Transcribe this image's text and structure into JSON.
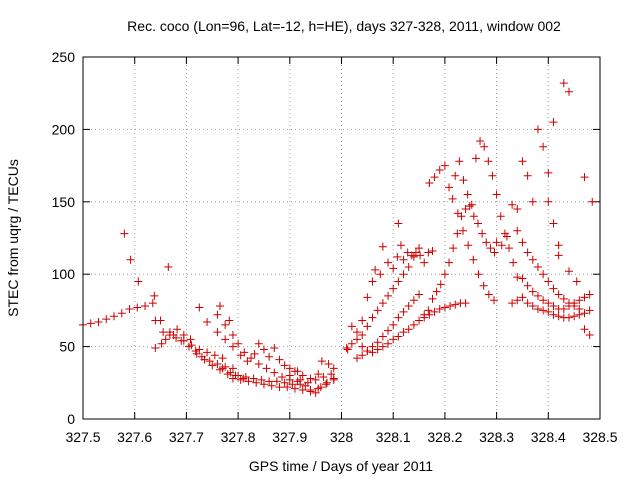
{
  "chart_data": {
    "type": "scatter",
    "title": "Rec. coco (Lon=96, Lat=-12, h=HE), days 327-328, 2011, window 002",
    "xlabel": "GPS time / Days of year 2011",
    "ylabel": "STEC from uqrg / TECUs",
    "xlim": [
      327.5,
      328.5
    ],
    "ylim": [
      0,
      250
    ],
    "xticks": [
      "327.5",
      "327.6",
      "327.7",
      "327.8",
      "327.9",
      "328",
      "328.1",
      "328.2",
      "328.3",
      "328.4",
      "328.5"
    ],
    "yticks": [
      "0",
      "50",
      "100",
      "150",
      "200",
      "250"
    ],
    "grid": true,
    "marker": "plus",
    "color": "#cc0000",
    "points": [
      [
        327.5,
        65
      ],
      [
        327.515,
        66
      ],
      [
        327.53,
        67
      ],
      [
        327.545,
        69
      ],
      [
        327.56,
        71
      ],
      [
        327.575,
        73
      ],
      [
        327.59,
        76
      ],
      [
        327.605,
        77
      ],
      [
        327.62,
        78
      ],
      [
        327.635,
        80
      ],
      [
        327.58,
        128
      ],
      [
        327.592,
        110
      ],
      [
        327.607,
        95
      ],
      [
        327.638,
        85
      ],
      [
        327.665,
        105
      ],
      [
        327.64,
        68
      ],
      [
        327.655,
        60
      ],
      [
        327.668,
        58
      ],
      [
        327.68,
        56
      ],
      [
        327.695,
        54
      ],
      [
        327.71,
        51
      ],
      [
        327.725,
        48
      ],
      [
        327.74,
        46
      ],
      [
        327.755,
        44
      ],
      [
        327.77,
        42
      ],
      [
        327.64,
        49
      ],
      [
        327.652,
        52
      ],
      [
        327.668,
        60
      ],
      [
        327.682,
        62
      ],
      [
        327.695,
        58
      ],
      [
        327.708,
        55
      ],
      [
        327.718,
        47
      ],
      [
        327.73,
        43
      ],
      [
        327.745,
        40
      ],
      [
        327.76,
        38
      ],
      [
        327.775,
        36
      ],
      [
        327.79,
        35
      ],
      [
        327.65,
        68
      ],
      [
        327.66,
        55
      ],
      [
        327.675,
        58
      ],
      [
        327.69,
        54
      ],
      [
        327.705,
        50
      ],
      [
        327.72,
        45
      ],
      [
        327.735,
        41
      ],
      [
        327.75,
        37
      ],
      [
        327.765,
        34
      ],
      [
        327.78,
        31
      ],
      [
        327.795,
        30
      ],
      [
        327.81,
        28
      ],
      [
        327.725,
        77
      ],
      [
        327.74,
        67
      ],
      [
        327.76,
        72
      ],
      [
        327.765,
        78
      ],
      [
        327.775,
        65
      ],
      [
        327.783,
        68
      ],
      [
        327.79,
        58
      ],
      [
        327.8,
        52
      ],
      [
        327.812,
        46
      ],
      [
        327.825,
        42
      ],
      [
        327.84,
        38
      ],
      [
        327.855,
        35
      ],
      [
        327.87,
        32
      ],
      [
        327.885,
        29
      ],
      [
        327.9,
        27
      ],
      [
        327.915,
        26
      ],
      [
        327.76,
        60
      ],
      [
        327.775,
        55
      ],
      [
        327.79,
        50
      ],
      [
        327.805,
        44
      ],
      [
        327.818,
        40
      ],
      [
        327.832,
        45
      ],
      [
        327.84,
        52
      ],
      [
        327.85,
        48
      ],
      [
        327.86,
        43
      ],
      [
        327.87,
        49
      ],
      [
        327.88,
        41
      ],
      [
        327.89,
        37
      ],
      [
        327.9,
        35
      ],
      [
        327.915,
        33
      ],
      [
        327.925,
        30
      ],
      [
        327.94,
        28
      ],
      [
        327.955,
        31
      ],
      [
        327.962,
        40
      ],
      [
        327.975,
        38
      ],
      [
        327.985,
        35
      ],
      [
        327.77,
        35
      ],
      [
        327.785,
        32
      ],
      [
        327.8,
        30
      ],
      [
        327.815,
        29
      ],
      [
        327.83,
        28
      ],
      [
        327.845,
        27
      ],
      [
        327.86,
        26
      ],
      [
        327.875,
        26
      ],
      [
        327.89,
        25
      ],
      [
        327.905,
        24
      ],
      [
        327.92,
        24
      ],
      [
        327.935,
        25
      ],
      [
        327.95,
        27
      ],
      [
        327.965,
        29
      ],
      [
        327.98,
        31
      ],
      [
        327.79,
        28
      ],
      [
        327.805,
        27
      ],
      [
        327.82,
        26
      ],
      [
        327.835,
        25
      ],
      [
        327.85,
        24
      ],
      [
        327.865,
        23
      ],
      [
        327.88,
        22
      ],
      [
        327.895,
        22
      ],
      [
        327.91,
        21
      ],
      [
        327.925,
        20
      ],
      [
        327.94,
        20
      ],
      [
        327.955,
        21
      ],
      [
        327.97,
        24
      ],
      [
        327.985,
        27
      ],
      [
        327.9,
        30
      ],
      [
        327.91,
        33
      ],
      [
        327.92,
        27
      ],
      [
        327.93,
        23
      ],
      [
        327.94,
        19
      ],
      [
        327.95,
        18
      ],
      [
        327.96,
        22
      ],
      [
        327.972,
        25
      ],
      [
        327.985,
        28
      ],
      [
        328.01,
        49
      ],
      [
        328.012,
        48
      ],
      [
        328.02,
        52
      ],
      [
        328.03,
        55
      ],
      [
        328.04,
        50
      ],
      [
        328.05,
        47
      ],
      [
        328.06,
        46
      ],
      [
        328.07,
        48
      ],
      [
        328.08,
        50
      ],
      [
        328.09,
        52
      ],
      [
        328.1,
        55
      ],
      [
        328.11,
        57
      ],
      [
        328.12,
        60
      ],
      [
        328.13,
        62
      ],
      [
        328.14,
        65
      ],
      [
        328.15,
        68
      ],
      [
        328.16,
        70
      ],
      [
        328.17,
        72
      ],
      [
        328.18,
        74
      ],
      [
        328.19,
        76
      ],
      [
        328.2,
        77
      ],
      [
        328.21,
        78
      ],
      [
        328.22,
        79
      ],
      [
        328.23,
        80
      ],
      [
        328.24,
        80
      ],
      [
        328.02,
        64
      ],
      [
        328.03,
        60
      ],
      [
        328.04,
        58
      ],
      [
        328.05,
        64
      ],
      [
        328.06,
        70
      ],
      [
        328.07,
        75
      ],
      [
        328.08,
        80
      ],
      [
        328.09,
        85
      ],
      [
        328.1,
        90
      ],
      [
        328.11,
        95
      ],
      [
        328.12,
        100
      ],
      [
        328.13,
        105
      ],
      [
        328.14,
        112
      ],
      [
        328.15,
        118
      ],
      [
        328.03,
        42
      ],
      [
        328.04,
        44
      ],
      [
        328.05,
        47
      ],
      [
        328.06,
        50
      ],
      [
        328.07,
        53
      ],
      [
        328.08,
        57
      ],
      [
        328.09,
        61
      ],
      [
        328.1,
        65
      ],
      [
        328.11,
        70
      ],
      [
        328.12,
        74
      ],
      [
        328.13,
        78
      ],
      [
        328.14,
        82
      ],
      [
        328.15,
        86
      ],
      [
        328.04,
        68
      ],
      [
        328.05,
        84
      ],
      [
        328.06,
        95
      ],
      [
        328.065,
        103
      ],
      [
        328.075,
        100
      ],
      [
        328.08,
        119
      ],
      [
        328.09,
        108
      ],
      [
        328.1,
        104
      ],
      [
        328.108,
        112
      ],
      [
        328.11,
        135
      ],
      [
        328.115,
        120
      ],
      [
        328.12,
        110
      ],
      [
        328.128,
        115
      ],
      [
        328.136,
        113
      ],
      [
        328.144,
        115
      ],
      [
        328.152,
        113
      ],
      [
        328.16,
        108
      ],
      [
        328.168,
        115
      ],
      [
        328.176,
        116
      ],
      [
        328.16,
        72
      ],
      [
        328.168,
        75
      ],
      [
        328.176,
        83
      ],
      [
        328.184,
        88
      ],
      [
        328.192,
        93
      ],
      [
        328.2,
        100
      ],
      [
        328.208,
        108
      ],
      [
        328.216,
        118
      ],
      [
        328.224,
        128
      ],
      [
        328.232,
        140
      ],
      [
        328.24,
        145
      ],
      [
        328.248,
        147
      ],
      [
        328.256,
        140
      ],
      [
        328.264,
        135
      ],
      [
        328.272,
        128
      ],
      [
        328.28,
        122
      ],
      [
        328.288,
        118
      ],
      [
        328.296,
        115
      ],
      [
        328.17,
        163
      ],
      [
        328.18,
        167
      ],
      [
        328.19,
        172
      ],
      [
        328.2,
        175
      ],
      [
        328.208,
        160
      ],
      [
        328.215,
        152
      ],
      [
        328.225,
        142
      ],
      [
        328.235,
        130
      ],
      [
        328.245,
        120
      ],
      [
        328.255,
        110
      ],
      [
        328.265,
        100
      ],
      [
        328.275,
        92
      ],
      [
        328.285,
        86
      ],
      [
        328.295,
        82
      ],
      [
        328.22,
        168
      ],
      [
        328.228,
        178
      ],
      [
        328.236,
        165
      ],
      [
        328.244,
        155
      ],
      [
        328.252,
        148
      ],
      [
        328.26,
        180
      ],
      [
        328.268,
        192
      ],
      [
        328.276,
        188
      ],
      [
        328.284,
        178
      ],
      [
        328.292,
        168
      ],
      [
        328.3,
        155
      ],
      [
        328.308,
        140
      ],
      [
        328.316,
        128
      ],
      [
        328.324,
        118
      ],
      [
        328.332,
        108
      ],
      [
        328.34,
        98
      ],
      [
        328.3,
        122
      ],
      [
        328.31,
        120
      ],
      [
        328.32,
        126
      ],
      [
        328.33,
        148
      ],
      [
        328.34,
        145
      ],
      [
        328.35,
        178
      ],
      [
        328.36,
        168
      ],
      [
        328.37,
        150
      ],
      [
        328.38,
        200
      ],
      [
        328.39,
        188
      ],
      [
        328.4,
        170
      ],
      [
        328.41,
        205
      ],
      [
        328.42,
        113
      ],
      [
        328.43,
        232
      ],
      [
        328.44,
        226
      ],
      [
        328.33,
        80
      ],
      [
        328.34,
        82
      ],
      [
        328.35,
        84
      ],
      [
        328.36,
        80
      ],
      [
        328.37,
        78
      ],
      [
        328.38,
        76
      ],
      [
        328.39,
        75
      ],
      [
        328.4,
        74
      ],
      [
        328.41,
        72
      ],
      [
        328.42,
        71
      ],
      [
        328.43,
        70
      ],
      [
        328.44,
        70
      ],
      [
        328.45,
        71
      ],
      [
        328.46,
        72
      ],
      [
        328.47,
        73
      ],
      [
        328.48,
        75
      ],
      [
        328.35,
        97
      ],
      [
        328.36,
        92
      ],
      [
        328.37,
        88
      ],
      [
        328.38,
        85
      ],
      [
        328.39,
        82
      ],
      [
        328.4,
        80
      ],
      [
        328.41,
        78
      ],
      [
        328.42,
        76
      ],
      [
        328.43,
        76
      ],
      [
        328.44,
        78
      ],
      [
        328.45,
        80
      ],
      [
        328.46,
        82
      ],
      [
        328.47,
        84
      ],
      [
        328.48,
        86
      ],
      [
        328.34,
        130
      ],
      [
        328.35,
        122
      ],
      [
        328.36,
        115
      ],
      [
        328.37,
        110
      ],
      [
        328.38,
        105
      ],
      [
        328.39,
        100
      ],
      [
        328.4,
        95
      ],
      [
        328.41,
        90
      ],
      [
        328.42,
        86
      ],
      [
        328.43,
        83
      ],
      [
        328.44,
        80
      ],
      [
        328.45,
        78
      ],
      [
        328.46,
        76
      ],
      [
        328.47,
        62
      ],
      [
        328.48,
        58
      ],
      [
        328.4,
        150
      ],
      [
        328.41,
        135
      ],
      [
        328.42,
        120
      ],
      [
        328.44,
        102
      ],
      [
        328.455,
        95
      ],
      [
        328.47,
        167
      ],
      [
        328.485,
        150
      ]
    ]
  }
}
